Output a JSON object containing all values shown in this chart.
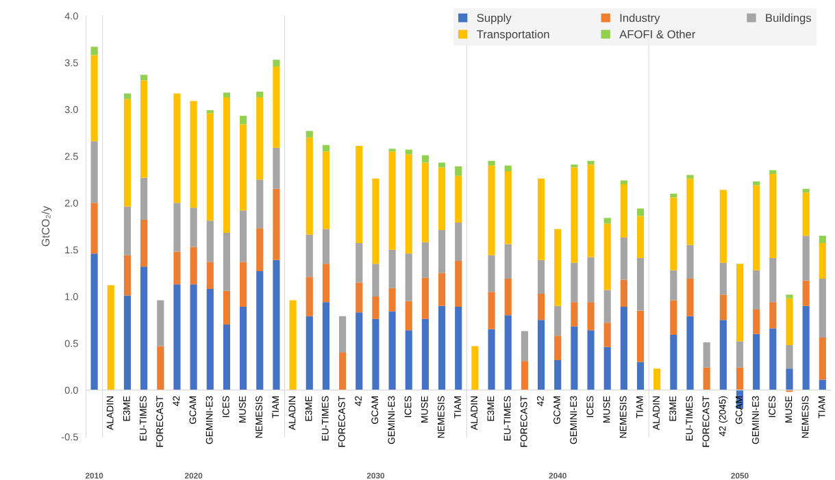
{
  "chart_data": [
    {
      "type": "bar",
      "stacked": true,
      "ylabel": "GtCO₂/y",
      "xlabel": "2010",
      "categories": [
        null
      ],
      "ylim": [
        -0.5,
        4.0
      ],
      "yticks": [
        -0.5,
        {
          "value": 0,
          "label": "0.0"
        },
        0.5,
        {
          "value": 1,
          "label": "1.0"
        },
        1.5,
        {
          "value": 2,
          "label": "2.0"
        },
        2.5,
        {
          "value": 3,
          "label": "3.0"
        },
        3.5,
        {
          "value": 4,
          "label": "4.0"
        }
      ],
      "series": [
        {
          "color": "#4472c4",
          "values": [
            1.46
          ]
        },
        {
          "color": "#ed7d31",
          "values": [
            0.54
          ]
        },
        {
          "color": "#a5a5a5",
          "values": [
            0.66
          ]
        },
        {
          "color": "#ffc000",
          "values": [
            0.92
          ]
        },
        {
          "color": "#92d050",
          "values": [
            0.09
          ]
        }
      ]
    },
    {
      "type": "bar",
      "stacked": true,
      "xlabel": "2020",
      "tick_labels": "x",
      "categories": [
        "ALADIN",
        "E3ME",
        "EU-TIMES",
        "FORECAST",
        "42",
        "GCAM",
        "GEMINI-E3",
        "ICES",
        "MUSE",
        "NEMESIS",
        "TIAM"
      ],
      "ylim": [
        -0.5,
        4.0
      ],
      "yticks": [
        -0.5,
        0.0,
        0.5,
        1.0,
        1.5,
        2.0,
        2.5,
        3.0,
        3.5,
        4.0
      ],
      "series": [
        {
          "color": "#4472c4",
          "values": [
            null,
            1.01,
            1.32,
            null,
            1.13,
            1.13,
            1.08,
            0.7,
            0.89,
            1.27,
            1.39
          ]
        },
        {
          "color": "#ed7d31",
          "values": [
            null,
            0.43,
            0.5,
            0.47,
            0.35,
            0.4,
            0.29,
            0.36,
            0.48,
            0.46,
            0.76
          ]
        },
        {
          "color": "#a5a5a5",
          "values": [
            null,
            0.52,
            0.45,
            0.49,
            0.52,
            0.42,
            0.44,
            0.62,
            0.55,
            0.52,
            0.44
          ]
        },
        {
          "color": "#ffc000",
          "values": [
            1.12,
            1.15,
            1.04,
            null,
            1.17,
            1.14,
            1.15,
            1.45,
            0.92,
            0.88,
            0.87
          ]
        },
        {
          "color": "#92d050",
          "values": [
            null,
            0.06,
            0.06,
            null,
            null,
            null,
            0.03,
            0.05,
            0.09,
            0.06,
            0.07
          ]
        }
      ]
    },
    {
      "type": "bar",
      "stacked": true,
      "xlabel": "2030",
      "tick_labels": "x",
      "categories": [
        "ALADIN",
        "E3ME",
        "EU-TIMES",
        "FORECAST",
        "42",
        "GCAM",
        "GEMINI-E3",
        "ICES",
        "MUSE",
        "NEMESIS",
        "TIAM"
      ],
      "ylim": [
        -0.5,
        4.0
      ],
      "yticks": [
        -0.5,
        0.0,
        0.5,
        1.0,
        1.5,
        2.0,
        2.5,
        3.0,
        3.5,
        4.0
      ],
      "series": [
        {
          "color": "#4472c4",
          "values": [
            null,
            0.79,
            0.94,
            null,
            0.83,
            0.76,
            0.84,
            0.64,
            0.76,
            0.9,
            0.89
          ]
        },
        {
          "color": "#ed7d31",
          "values": [
            null,
            0.42,
            0.41,
            0.4,
            0.32,
            0.24,
            0.25,
            0.31,
            0.44,
            0.35,
            0.49
          ]
        },
        {
          "color": "#a5a5a5",
          "values": [
            null,
            0.45,
            0.37,
            0.39,
            0.42,
            0.35,
            0.41,
            0.51,
            0.38,
            0.46,
            0.41
          ]
        },
        {
          "color": "#ffc000",
          "values": [
            0.96,
            1.04,
            0.83,
            null,
            1.04,
            0.91,
            1.05,
            1.06,
            0.85,
            0.67,
            0.5
          ]
        },
        {
          "color": "#92d050",
          "values": [
            null,
            0.07,
            0.07,
            null,
            null,
            null,
            0.03,
            0.05,
            0.08,
            0.05,
            0.1
          ]
        }
      ]
    },
    {
      "type": "bar",
      "stacked": true,
      "xlabel": "2040",
      "tick_labels": "x",
      "legend": "top right",
      "categories": [
        "ALADIN",
        "E3ME",
        "EU-TIMES",
        "FORECAST",
        "42",
        "GCAM",
        "GEMINI-E3",
        "ICES",
        "MUSE",
        "NEMESIS",
        "TIAM"
      ],
      "ylim": [
        -0.5,
        4.0
      ],
      "yticks": [
        -0.5,
        0.0,
        0.5,
        1.0,
        1.5,
        2.0,
        2.5,
        3.0,
        3.5,
        4.0
      ],
      "series": [
        {
          "name": "Supply",
          "color": "#4472c4",
          "values": [
            null,
            0.65,
            0.8,
            null,
            0.75,
            0.32,
            0.68,
            0.64,
            0.46,
            0.89,
            0.3
          ]
        },
        {
          "name": "Industry",
          "color": "#ed7d31",
          "values": [
            null,
            0.4,
            0.39,
            0.31,
            0.28,
            0.26,
            0.26,
            0.3,
            0.26,
            0.29,
            0.55
          ]
        },
        {
          "name": "Buildings",
          "color": "#a5a5a5",
          "values": [
            null,
            0.39,
            0.37,
            0.32,
            0.36,
            0.32,
            0.42,
            0.48,
            0.35,
            0.45,
            0.56
          ]
        },
        {
          "name": "Transportation",
          "color": "#ffc000",
          "values": [
            0.47,
            0.96,
            0.78,
            null,
            0.87,
            0.82,
            1.02,
            0.99,
            0.71,
            0.57,
            0.45
          ]
        },
        {
          "name": "AFOFI & Other",
          "color": "#92d050",
          "values": [
            null,
            0.05,
            0.06,
            null,
            null,
            null,
            0.03,
            0.04,
            0.06,
            0.04,
            0.08
          ]
        }
      ]
    },
    {
      "type": "bar",
      "stacked": true,
      "xlabel": "2050",
      "tick_labels": "x",
      "categories": [
        "ALADIN",
        "E3ME",
        "EU-TIMES",
        "FORECAST",
        "42 (2045)",
        "GCAM",
        "GEMINI-E3",
        "ICES",
        "MUSE",
        "NEMESIS",
        "TIAM"
      ],
      "ylim": [
        -0.5,
        4.0
      ],
      "yticks": [
        -0.5,
        0.0,
        0.5,
        1.0,
        1.5,
        2.0,
        2.5,
        3.0,
        3.5,
        4.0
      ],
      "series": [
        {
          "color": "#4472c4",
          "values": [
            null,
            0.59,
            0.79,
            null,
            0.75,
            -0.2,
            0.6,
            0.66,
            0.23,
            0.9,
            0.11
          ]
        },
        {
          "color": "#ed7d31",
          "values": [
            null,
            0.37,
            0.4,
            0.24,
            0.27,
            0.24,
            0.26,
            0.28,
            -0.02,
            0.27,
            0.45
          ]
        },
        {
          "color": "#a5a5a5",
          "values": [
            null,
            0.32,
            0.36,
            0.27,
            0.34,
            0.28,
            0.42,
            0.47,
            0.25,
            0.48,
            0.63
          ]
        },
        {
          "color": "#ffc000",
          "values": [
            0.23,
            0.78,
            0.71,
            null,
            0.78,
            0.83,
            0.91,
            0.9,
            0.5,
            0.46,
            0.38
          ]
        },
        {
          "color": "#92d050",
          "values": [
            null,
            0.04,
            0.04,
            null,
            null,
            null,
            0.04,
            0.04,
            0.04,
            0.04,
            0.08
          ]
        }
      ]
    }
  ]
}
